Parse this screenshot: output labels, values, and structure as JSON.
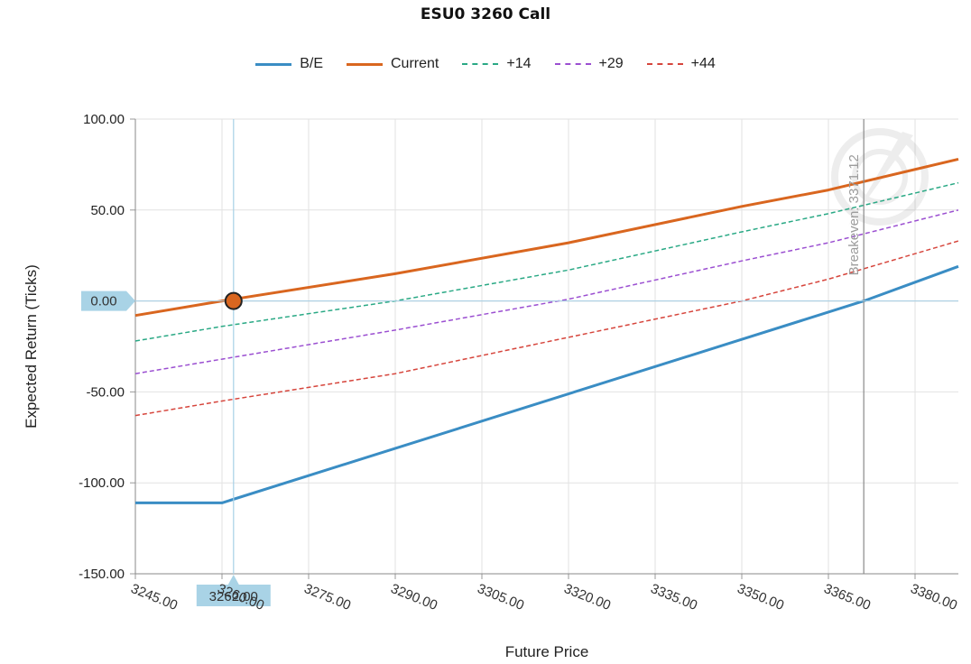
{
  "chart_data": {
    "type": "line",
    "title": "ESU0 3260 Call",
    "xlabel": "Future Price",
    "ylabel": "Expected Return (Ticks)",
    "xlim": [
      3245,
      3387.5
    ],
    "ylim": [
      -150,
      100
    ],
    "x_ticks": [
      "3245.00",
      "3260.00",
      "3275.00",
      "3290.00",
      "3305.00",
      "3320.00",
      "3335.00",
      "3350.00",
      "3365.00",
      "3380.00"
    ],
    "y_ticks": [
      "100.00",
      "50.00",
      "0.00",
      "-50.00",
      "-100.00",
      "-150.00"
    ],
    "grid": true,
    "legend_position": "top-center",
    "series": [
      {
        "name": "B/E",
        "color": "#3a8dc4",
        "dash": "solid",
        "width": 3,
        "points": [
          [
            3245,
            -111
          ],
          [
            3260,
            -111
          ],
          [
            3371.12,
            0
          ],
          [
            3387.5,
            19
          ]
        ]
      },
      {
        "name": "Current",
        "color": "#d9661f",
        "dash": "solid",
        "width": 3,
        "points": [
          [
            3245,
            -8
          ],
          [
            3260,
            0
          ],
          [
            3290,
            15
          ],
          [
            3320,
            32
          ],
          [
            3350,
            52
          ],
          [
            3365,
            61
          ],
          [
            3387.5,
            78
          ]
        ]
      },
      {
        "name": "+14",
        "color": "#2aa985",
        "dash": "dashed",
        "width": 1.5,
        "points": [
          [
            3245,
            -22
          ],
          [
            3260,
            -14
          ],
          [
            3290,
            0
          ],
          [
            3320,
            17
          ],
          [
            3350,
            38
          ],
          [
            3365,
            48
          ],
          [
            3387.5,
            65
          ]
        ]
      },
      {
        "name": "+29",
        "color": "#9b4fd1",
        "dash": "dashed",
        "width": 1.5,
        "points": [
          [
            3245,
            -40
          ],
          [
            3260,
            -32
          ],
          [
            3290,
            -16
          ],
          [
            3320,
            1
          ],
          [
            3350,
            22
          ],
          [
            3365,
            32
          ],
          [
            3387.5,
            50
          ]
        ]
      },
      {
        "name": "+44",
        "color": "#d6453c",
        "dash": "dashed",
        "width": 1.5,
        "points": [
          [
            3245,
            -63
          ],
          [
            3260,
            -55
          ],
          [
            3290,
            -40
          ],
          [
            3320,
            -20
          ],
          [
            3350,
            0
          ],
          [
            3365,
            12
          ],
          [
            3387.5,
            33
          ]
        ]
      }
    ],
    "crosshair": {
      "x": 3262,
      "x_label": "3262.00",
      "y": 0,
      "y_label": "0.00",
      "marker_color": "#d9661f"
    },
    "breakeven": {
      "x": 3371.12,
      "label": "Breakeven: 3371.12"
    }
  }
}
